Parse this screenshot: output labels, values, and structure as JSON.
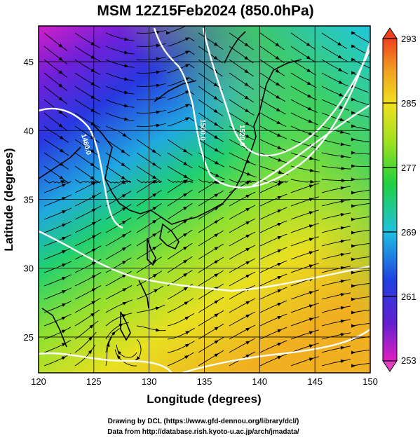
{
  "title": "MSM 12Z15Feb2024 (850.0hPa)",
  "xaxis": {
    "label": "Longitude (degrees)",
    "ticks": [
      "120",
      "125",
      "130",
      "135",
      "140",
      "145",
      "150"
    ],
    "range": [
      120,
      150
    ]
  },
  "yaxis": {
    "label": "Latitude  (degrees)",
    "ticks": [
      "25",
      "30",
      "35",
      "40",
      "45"
    ],
    "range": [
      22.4,
      47.6
    ]
  },
  "colorbar": {
    "ticks": [
      "293",
      "285",
      "277",
      "269",
      "261",
      "253"
    ],
    "range": [
      253,
      293
    ],
    "stops": [
      "#e020c0",
      "#6020d0",
      "#2040e0",
      "#20c0e0",
      "#20d040",
      "#a0e020",
      "#f0e020",
      "#f0a020",
      "#f04020"
    ]
  },
  "contours": {
    "color": "#ffffff",
    "labels": [
      "1480.0",
      "1500.0",
      "1520.0"
    ]
  },
  "credits": {
    "line1": "Drawing by DCL (https://www.gfd-dennou.org/library/dcl/)",
    "line2": "Data from http://database.rish.kyoto-u.ac.jp/arch/jmadata/"
  },
  "chart_data": {
    "type": "heatmap",
    "title": "MSM 12Z15Feb2024 (850.0hPa)",
    "xlabel": "Longitude (degrees)",
    "ylabel": "Latitude  (degrees)",
    "xlim": [
      120,
      150
    ],
    "ylim": [
      22.4,
      47.6
    ],
    "colorbar_range": [
      253,
      293
    ],
    "grid": true,
    "contour_levels": [
      1480.0,
      1500.0,
      1520.0
    ]
  }
}
